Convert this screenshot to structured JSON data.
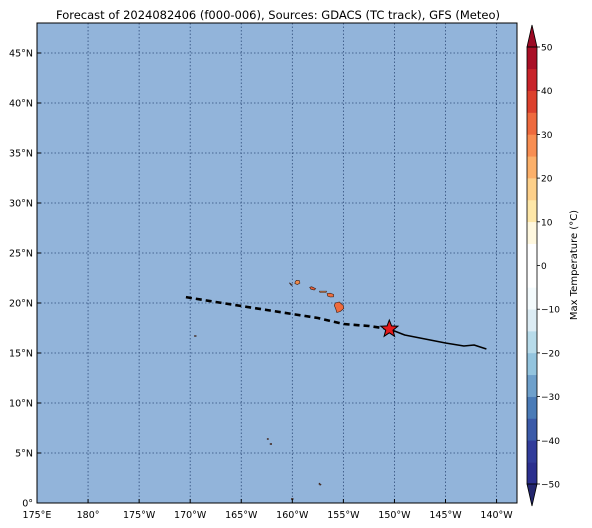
{
  "title": "Forecast of 2024082406 (f000-006), Sources: GDACS (TC track), GFS (Meteo)",
  "map": {
    "lon_range": [
      175,
      -138
    ],
    "lat_range": [
      0,
      48
    ],
    "ocean_color": "#92b4da",
    "grid_style": "dotted",
    "lat_ticks": [
      {
        "v": 0,
        "label": "0°"
      },
      {
        "v": 5,
        "label": "5°N"
      },
      {
        "v": 10,
        "label": "10°N"
      },
      {
        "v": 15,
        "label": "15°N"
      },
      {
        "v": 20,
        "label": "20°N"
      },
      {
        "v": 25,
        "label": "25°N"
      },
      {
        "v": 30,
        "label": "30°N"
      },
      {
        "v": 35,
        "label": "35°N"
      },
      {
        "v": 40,
        "label": "40°N"
      },
      {
        "v": 45,
        "label": "45°N"
      }
    ],
    "lon_ticks": [
      {
        "v": 175,
        "label": "175°E"
      },
      {
        "v": 180,
        "label": "180°"
      },
      {
        "v": -175,
        "label": "175°W"
      },
      {
        "v": -170,
        "label": "170°W"
      },
      {
        "v": -165,
        "label": "165°W"
      },
      {
        "v": -160,
        "label": "160°W"
      },
      {
        "v": -155,
        "label": "155°W"
      },
      {
        "v": -150,
        "label": "150°W"
      },
      {
        "v": -145,
        "label": "145°W"
      },
      {
        "v": -140,
        "label": "140°W"
      }
    ]
  },
  "chart_data": {
    "type": "line",
    "title": "Forecast of 2024082406 (f000-006), Sources: GDACS (TC track), GFS (Meteo)",
    "xlabel": "",
    "ylabel": "",
    "series": [
      {
        "style": "solid",
        "color": "#000000",
        "points": [
          [
            -141,
            15.4
          ],
          [
            -142.2,
            15.8
          ],
          [
            -143.2,
            15.7
          ],
          [
            -145,
            16.0
          ],
          [
            -147,
            16.4
          ],
          [
            -149,
            16.8
          ],
          [
            -150.5,
            17.4
          ]
        ]
      },
      {
        "style": "dashed",
        "color": "#000000",
        "points": [
          [
            -150.5,
            17.4
          ],
          [
            -152.5,
            17.7
          ],
          [
            -155,
            17.9
          ],
          [
            -157.5,
            18.5
          ],
          [
            -160,
            18.9
          ],
          [
            -162.5,
            19.3
          ],
          [
            -165,
            19.7
          ],
          [
            -167.5,
            20.1
          ],
          [
            -170.5,
            20.6
          ]
        ]
      }
    ],
    "current_position": {
      "lon": -150.5,
      "lat": 17.4,
      "marker": "star",
      "color": "#e41a1c"
    },
    "islands": [
      {
        "name": "Niihau",
        "lon": -160.15,
        "lat": 21.9,
        "color": "#3d6fb0"
      },
      {
        "name": "Kauai",
        "lon": -159.5,
        "lat": 22.07,
        "color": "#f08a4b"
      },
      {
        "name": "Oahu",
        "lon": -158.0,
        "lat": 21.47,
        "color": "#e8603c"
      },
      {
        "name": "Molokai",
        "lon": -157.0,
        "lat": 21.13,
        "color": "#f4a06a"
      },
      {
        "name": "Maui",
        "lon": -156.3,
        "lat": 20.8,
        "color": "#ef6f3f"
      },
      {
        "name": "Hawaii",
        "lon": -155.5,
        "lat": 19.6,
        "color": "#ef6a3c"
      },
      {
        "name": "Johnston Atoll",
        "lon": -169.5,
        "lat": 16.7,
        "color": "#6f6f6f"
      },
      {
        "name": "Palmyra",
        "lon": -162.1,
        "lat": 5.9,
        "color": "#6f6f6f"
      },
      {
        "name": "Kingman Reef",
        "lon": -162.4,
        "lat": 6.4,
        "color": "#6f6f6f"
      },
      {
        "name": "Jarvis",
        "lon": -160.0,
        "lat": 0.4,
        "color": "#6f6f6f"
      },
      {
        "name": "Small atoll",
        "lon": -157.3,
        "lat": 1.9,
        "color": "#6f6f6f"
      }
    ]
  },
  "colorbar": {
    "label": "Max Temperature (°C)",
    "min": -50,
    "max": 50,
    "step": 5,
    "tick_labels": [
      "−50",
      "−40",
      "−30",
      "−20",
      "−10",
      "0",
      "10",
      "20",
      "30",
      "40",
      "50"
    ],
    "colors": [
      "#2b2f8e",
      "#313c9a",
      "#3b5aa8",
      "#4a7bb7",
      "#6ea0cb",
      "#93c4de",
      "#b7dbea",
      "#dcecf4",
      "#f4fbfd",
      "#ffffff",
      "#ffffff",
      "#fff8df",
      "#fee7a8",
      "#fdd08a",
      "#fcb06a",
      "#f88e52",
      "#ee6a3e",
      "#dc412d",
      "#c8242a",
      "#a90f26"
    ],
    "under_color": "#23266e",
    "over_color": "#9b0a24"
  }
}
